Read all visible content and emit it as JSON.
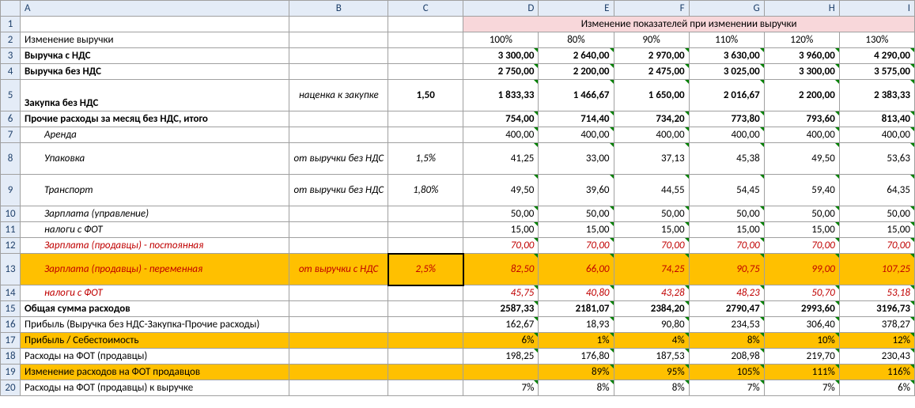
{
  "columns": [
    "A",
    "B",
    "C",
    "D",
    "E",
    "F",
    "G",
    "H",
    "I"
  ],
  "header": {
    "title": "Изменение показателей при изменении выручки",
    "percents": [
      "100%",
      "80%",
      "90%",
      "110%",
      "120%",
      "130%"
    ]
  },
  "rows": {
    "r2_label": "Изменение выручки",
    "r3_label": "Выручка с НДС",
    "r3_vals": [
      "3 300,00",
      "2 640,00",
      "2 970,00",
      "3 630,00",
      "3 960,00",
      "4 290,00"
    ],
    "r4_label": "Выручка без НДС",
    "r4_vals": [
      "2 750,00",
      "2 200,00",
      "2 475,00",
      "3 025,00",
      "3 300,00",
      "3 575,00"
    ],
    "r5_label": "Закупка без НДС",
    "r5_b": "наценка к закупке",
    "r5_c": "1,50",
    "r5_vals": [
      "1 833,33",
      "1 466,67",
      "1 650,00",
      "2 016,67",
      "2 200,00",
      "2 383,33"
    ],
    "r6_label": "Прочие расходы за месяц без НДС, итого",
    "r6_vals": [
      "754,00",
      "714,40",
      "734,20",
      "773,80",
      "793,60",
      "813,40"
    ],
    "r7_label": "Аренда",
    "r7_vals": [
      "400,00",
      "400,00",
      "400,00",
      "400,00",
      "400,00",
      "400,00"
    ],
    "r8_label": "Упаковка",
    "r8_b": "от выручки без НДС",
    "r8_c": "1,5%",
    "r8_vals": [
      "41,25",
      "33,00",
      "37,13",
      "45,38",
      "49,50",
      "53,63"
    ],
    "r9_label": "Транспорт",
    "r9_b": "от выручки без НДС",
    "r9_c": "1,80%",
    "r9_vals": [
      "49,50",
      "39,60",
      "44,55",
      "54,45",
      "59,40",
      "64,35"
    ],
    "r10_label": "Зарплата (управление)",
    "r10_vals": [
      "50,00",
      "50,00",
      "50,00",
      "50,00",
      "50,00",
      "50,00"
    ],
    "r11_label": "налоги с ФОТ",
    "r11_vals": [
      "15,00",
      "15,00",
      "15,00",
      "15,00",
      "15,00",
      "15,00"
    ],
    "r12_label": "Зарплата (продавцы) - постоянная",
    "r12_vals": [
      "70,00",
      "70,00",
      "70,00",
      "70,00",
      "70,00",
      "70,00"
    ],
    "r13_label": "Зарплата (продавцы) - переменная",
    "r13_b": "от выручки с НДС",
    "r13_c": "2,5%",
    "r13_vals": [
      "82,50",
      "66,00",
      "74,25",
      "90,75",
      "99,00",
      "107,25"
    ],
    "r14_label": "налоги с ФОТ",
    "r14_vals": [
      "45,75",
      "40,80",
      "43,28",
      "48,23",
      "50,70",
      "53,18"
    ],
    "r15_label": "Общая сумма расходов",
    "r15_vals": [
      "2587,33",
      "2181,07",
      "2384,20",
      "2790,47",
      "2993,60",
      "3196,73"
    ],
    "r16_label": "Прибыль  (Выручка без НДС-Закупка-Прочие расходы)",
    "r16_vals": [
      "162,67",
      "18,93",
      "90,80",
      "234,53",
      "306,40",
      "378,27"
    ],
    "r17_label": "Прибыль / Себестоимость",
    "r17_vals": [
      "6%",
      "1%",
      "4%",
      "8%",
      "10%",
      "12%"
    ],
    "r18_label": "Расходы на ФОТ (продавцы)",
    "r18_vals": [
      "198,25",
      "176,80",
      "187,53",
      "208,98",
      "219,70",
      "230,43"
    ],
    "r19_label": "Изменение расходов на ФОТ продавцов",
    "r19_vals": [
      "",
      "89%",
      "95%",
      "105%",
      "111%",
      "116%"
    ],
    "r20_label": "Расходы на ФОТ (продавцы) к выручке",
    "r20_vals": [
      "7%",
      "8%",
      "8%",
      "7%",
      "7%",
      "6%"
    ]
  }
}
